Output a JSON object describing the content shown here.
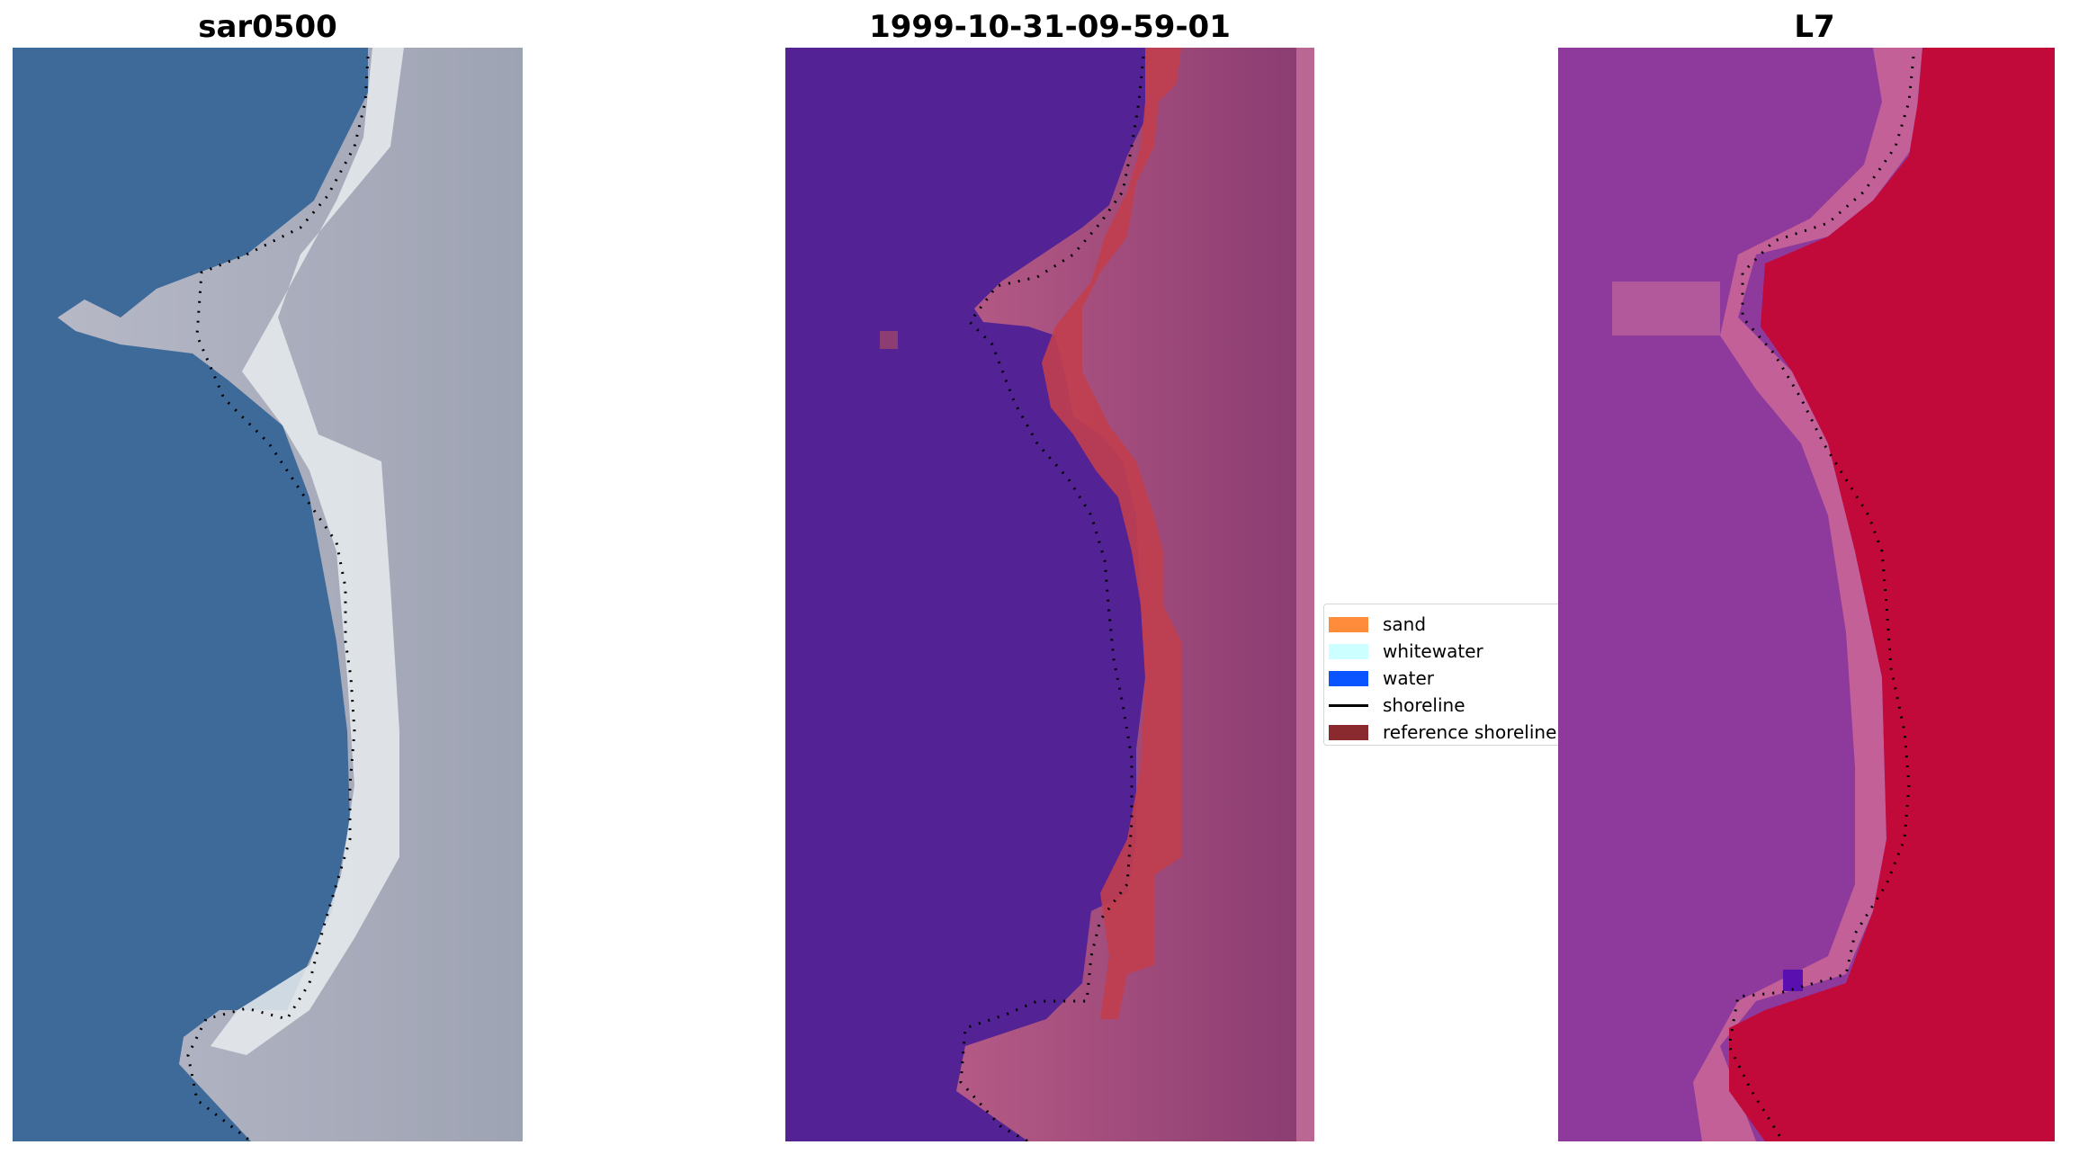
{
  "panels": [
    {
      "title": "sar0500"
    },
    {
      "title": "1999-10-31-09-59-01"
    },
    {
      "title": "L7"
    }
  ],
  "legend": {
    "items": [
      {
        "label": "sand",
        "color": "#ff8c3a"
      },
      {
        "label": "whitewater",
        "color": "#ccffff"
      },
      {
        "label": "water",
        "color": "#0a55ff"
      },
      {
        "label": "shoreline",
        "color": "#000000"
      },
      {
        "label": "reference shoreline",
        "color": "#8b2a2e"
      }
    ]
  }
}
